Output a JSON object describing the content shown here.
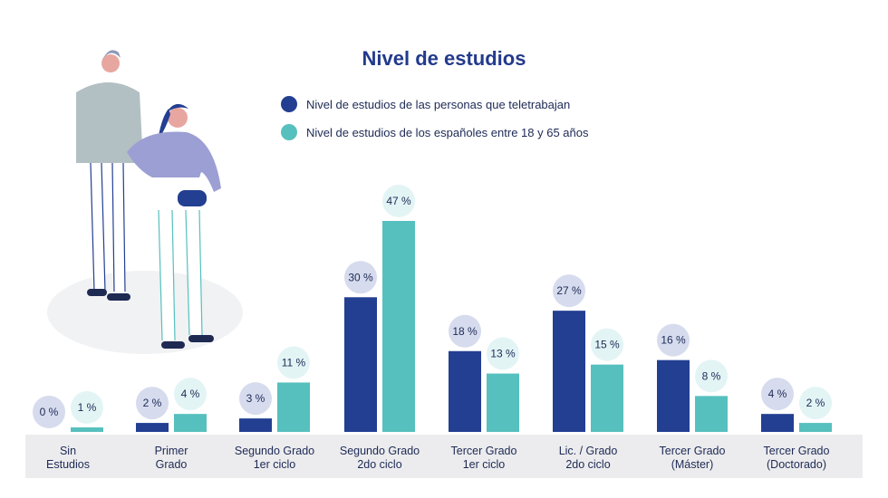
{
  "chart_data": {
    "type": "bar",
    "title": "Nivel de estudios",
    "categories": [
      [
        "Sin",
        "Estudios"
      ],
      [
        "Primer",
        "Grado"
      ],
      [
        "Segundo Grado",
        "1er ciclo"
      ],
      [
        "Segundo Grado",
        "2do ciclo"
      ],
      [
        "Tercer Grado",
        "1er ciclo"
      ],
      [
        "Lic. / Grado",
        "2do ciclo"
      ],
      [
        "Tercer Grado",
        "(Máster)"
      ],
      [
        "Tercer Grado",
        "(Doctorado)"
      ]
    ],
    "series": [
      {
        "name": "Nivel de estudios de las personas que teletrabajan",
        "color": "#233f92",
        "values": [
          0,
          2,
          3,
          30,
          18,
          27,
          16,
          4
        ],
        "labels": [
          "0 %",
          "2 %",
          "3 %",
          "30 %",
          "18 %",
          "27 %",
          "16 %",
          "4 %"
        ]
      },
      {
        "name": "Nivel de estudios de los españoles entre 18 y 65 años",
        "color": "#56c0be",
        "values": [
          1,
          4,
          11,
          47,
          13,
          15,
          8,
          2
        ],
        "labels": [
          "1 %",
          "4 %",
          "11 %",
          "47 %",
          "13 %",
          "15 %",
          "8 %",
          "2 %"
        ]
      }
    ],
    "ylim": [
      0,
      47
    ],
    "grid": false,
    "legend": "top"
  },
  "colors": {
    "title": "#233a8c",
    "axis_band": "#ececee",
    "bubble_dark": "#d6dbee",
    "bubble_light": "#e3f4f5"
  },
  "illustration": "couple-standing"
}
